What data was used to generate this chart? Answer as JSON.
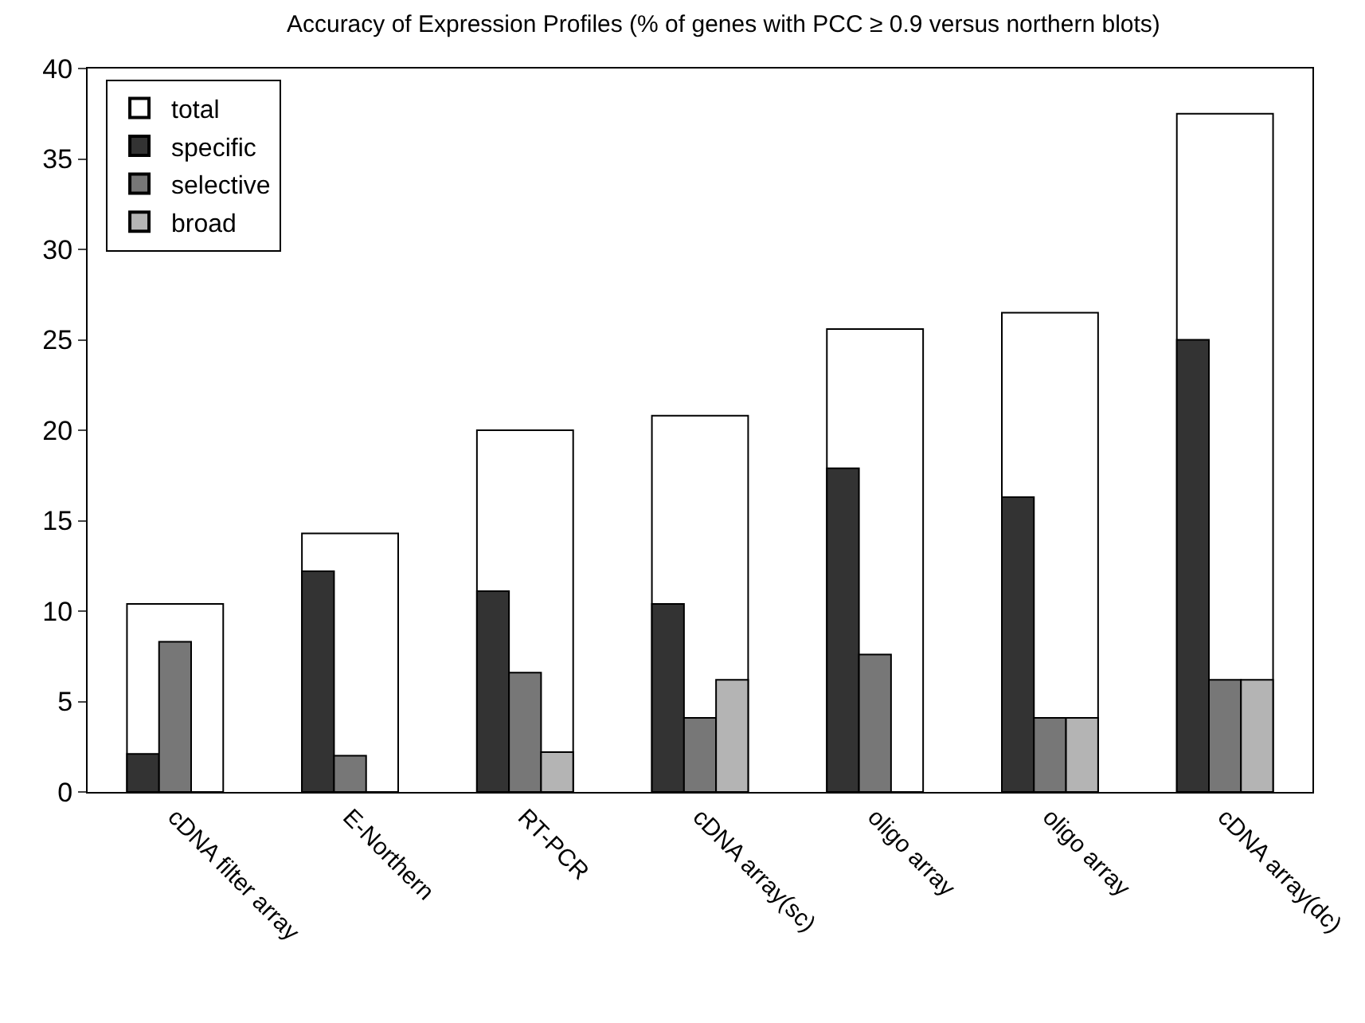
{
  "chart_data": {
    "type": "bar",
    "title": "Accuracy of Expression Profiles (% of genes with PCC ≥ 0.9 versus northern blots)",
    "categories": [
      "cDNA filter array",
      "E-Northern",
      "RT-PCR",
      "cDNA array(sc)",
      "oligo array",
      "oligo array",
      "cDNA array(dc)"
    ],
    "series": [
      {
        "name": "total",
        "color": "#ffffff",
        "values": [
          10.4,
          14.3,
          20.0,
          20.8,
          25.6,
          26.5,
          37.5
        ]
      },
      {
        "name": "specific",
        "color": "#333333",
        "values": [
          2.1,
          12.2,
          11.1,
          10.4,
          17.9,
          16.3,
          25.0
        ]
      },
      {
        "name": "selective",
        "color": "#777777",
        "values": [
          8.3,
          2.0,
          6.6,
          4.1,
          7.6,
          4.1,
          6.2
        ]
      },
      {
        "name": "broad",
        "color": "#b4b4b4",
        "values": [
          null,
          null,
          2.2,
          6.2,
          null,
          4.1,
          6.2
        ]
      }
    ],
    "ylim": [
      0,
      40
    ],
    "yticks": [
      0,
      5,
      10,
      15,
      20,
      25,
      30,
      35,
      40
    ],
    "legend": "top left"
  }
}
